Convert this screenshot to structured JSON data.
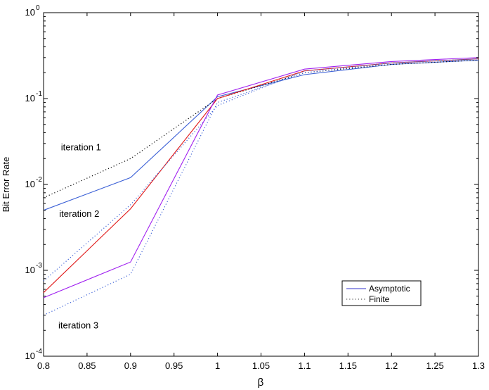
{
  "chart_data": {
    "type": "line",
    "xlabel": "β",
    "ylabel": "Bit Error Rate",
    "xlim": [
      0.8,
      1.3
    ],
    "ylim": [
      0.0001,
      1
    ],
    "yscale": "log",
    "x_ticks": [
      "0.8",
      "0.85",
      "0.9",
      "0.95",
      "1",
      "1.05",
      "1.1",
      "1.15",
      "1.2",
      "1.25",
      "1.3"
    ],
    "y_ticks": [
      {
        "base": "10",
        "exp": "-4",
        "value": 0.0001
      },
      {
        "base": "10",
        "exp": "-3",
        "value": 0.001
      },
      {
        "base": "10",
        "exp": "-2",
        "value": 0.01
      },
      {
        "base": "10",
        "exp": "-1",
        "value": 0.1
      },
      {
        "base": "10",
        "exp": "0",
        "value": 1
      }
    ],
    "grid": false,
    "legend": {
      "placement": "lower-right",
      "entries": [
        {
          "label": "Asymptotic",
          "style": "solid",
          "color": "#3333cc"
        },
        {
          "label": "Finite",
          "style": "dotted",
          "color": "#333333"
        }
      ]
    },
    "x": [
      0.8,
      0.9,
      1.0,
      1.1,
      1.2,
      1.3
    ],
    "series": [
      {
        "style": "solid",
        "color": "#3a5fd6",
        "values": [
          0.005,
          0.012,
          0.105,
          0.19,
          0.25,
          0.28
        ]
      },
      {
        "style": "dotted",
        "color": "#000000",
        "values": [
          0.007,
          0.02,
          0.1,
          0.2,
          0.25,
          0.28
        ]
      },
      {
        "style": "solid",
        "color": "#e01818",
        "values": [
          0.00055,
          0.0052,
          0.1,
          0.21,
          0.26,
          0.29
        ]
      },
      {
        "style": "dotted",
        "color": "#3a5fd6",
        "values": [
          0.00075,
          0.0058,
          0.083,
          0.21,
          0.26,
          0.29
        ]
      },
      {
        "style": "solid",
        "color": "#a020f0",
        "values": [
          0.00048,
          0.00125,
          0.11,
          0.22,
          0.27,
          0.3
        ]
      },
      {
        "style": "dotted",
        "color": "#3a5fd6",
        "values": [
          0.0003,
          0.0009,
          0.09,
          0.2,
          0.26,
          0.29
        ]
      }
    ],
    "annotations": [
      {
        "text": "iteration 1",
        "x": 0.82,
        "y": 0.025
      },
      {
        "text": "iteration 2",
        "x": 0.818,
        "y": 0.0042
      },
      {
        "text": "iteration 3",
        "x": 0.817,
        "y": 0.00021
      }
    ]
  }
}
